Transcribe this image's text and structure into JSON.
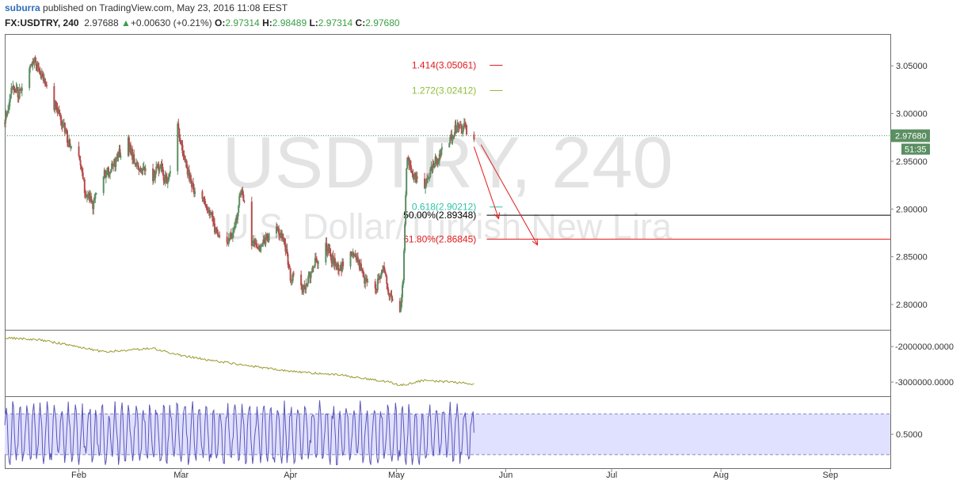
{
  "header": {
    "author": "suburra",
    "published_text": " published on TradingView.com, May 23, 2016 11:08 EEST",
    "symbol": "FX:USDTRY, 240",
    "last": "2.97688",
    "change": "+0.00630 (+0.21%)",
    "o_label": "O:",
    "o": "2.97314",
    "h_label": "H:",
    "h": "2.98489",
    "l_label": "L:",
    "l": "2.97314",
    "c_label": "C:",
    "c": "2.97680"
  },
  "watermark": {
    "line1": "USDTRY, 240",
    "line2": "U.S. Dollar/Turkish New Lira"
  },
  "colors": {
    "up": "#5b8f63",
    "down": "#b54d4d",
    "red": "#e31a1c",
    "fib_green": "#8fbd3a",
    "fib_teal": "#2ec4a6",
    "olive": "#9a9a2e",
    "purple": "#5a56b8",
    "band_fill": "#e0e0ff",
    "price_tag": "#5b8f63"
  },
  "chart_data": [
    {
      "type": "candlestick",
      "title": "USDTRY, 240",
      "x_tick_labels": [
        "Feb",
        "Mar",
        "Apr",
        "May",
        "Jun",
        "Jul",
        "Aug",
        "Sep"
      ],
      "y_tick_labels": [
        "3.05000",
        "3.00000",
        "2.95000",
        "2.90000",
        "2.85000",
        "2.80000"
      ],
      "ylim": [
        2.7735,
        3.0825
      ],
      "last_price_label": "2.97680",
      "countdown_label": "51:35",
      "close_path": [
        [
          "2016-01-11",
          2.99
        ],
        [
          "2016-01-13",
          3.03
        ],
        [
          "2016-01-15",
          3.02
        ],
        [
          "2016-01-18",
          3.045
        ],
        [
          "2016-01-20",
          3.055
        ],
        [
          "2016-01-22",
          3.035
        ],
        [
          "2016-01-25",
          3.01
        ],
        [
          "2016-01-27",
          2.995
        ],
        [
          "2016-01-29",
          2.97
        ],
        [
          "2016-02-01",
          2.95
        ],
        [
          "2016-02-03",
          2.915
        ],
        [
          "2016-02-05",
          2.905
        ],
        [
          "2016-02-08",
          2.935
        ],
        [
          "2016-02-10",
          2.94
        ],
        [
          "2016-02-12",
          2.955
        ],
        [
          "2016-02-15",
          2.97
        ],
        [
          "2016-02-17",
          2.945
        ],
        [
          "2016-02-19",
          2.94
        ],
        [
          "2016-02-22",
          2.935
        ],
        [
          "2016-02-24",
          2.945
        ],
        [
          "2016-02-26",
          2.925
        ],
        [
          "2016-02-29",
          2.99
        ],
        [
          "2016-03-02",
          2.95
        ],
        [
          "2016-03-04",
          2.925
        ],
        [
          "2016-03-07",
          2.91
        ],
        [
          "2016-03-09",
          2.9
        ],
        [
          "2016-03-11",
          2.875
        ],
        [
          "2016-03-14",
          2.865
        ],
        [
          "2016-03-16",
          2.875
        ],
        [
          "2016-03-18",
          2.92
        ],
        [
          "2016-03-21",
          2.865
        ],
        [
          "2016-03-23",
          2.855
        ],
        [
          "2016-03-25",
          2.87
        ],
        [
          "2016-03-28",
          2.88
        ],
        [
          "2016-03-30",
          2.87
        ],
        [
          "2016-04-01",
          2.83
        ],
        [
          "2016-04-04",
          2.815
        ],
        [
          "2016-04-06",
          2.825
        ],
        [
          "2016-04-08",
          2.845
        ],
        [
          "2016-04-11",
          2.86
        ],
        [
          "2016-04-13",
          2.845
        ],
        [
          "2016-04-15",
          2.835
        ],
        [
          "2016-04-18",
          2.855
        ],
        [
          "2016-04-20",
          2.845
        ],
        [
          "2016-04-22",
          2.825
        ],
        [
          "2016-04-25",
          2.815
        ],
        [
          "2016-04-27",
          2.84
        ],
        [
          "2016-04-29",
          2.81
        ],
        [
          "2016-05-02",
          2.795
        ],
        [
          "2016-05-03",
          2.83
        ],
        [
          "2016-05-04",
          2.955
        ],
        [
          "2016-05-06",
          2.935
        ],
        [
          "2016-05-09",
          2.925
        ],
        [
          "2016-05-11",
          2.945
        ],
        [
          "2016-05-13",
          2.955
        ],
        [
          "2016-05-16",
          2.97
        ],
        [
          "2016-05-18",
          2.985
        ],
        [
          "2016-05-20",
          2.985
        ],
        [
          "2016-05-23",
          2.9768
        ]
      ],
      "horizontal_lines": [
        {
          "label": "1.414(3.05061)",
          "value": 3.05061,
          "color": "#e31a1c",
          "extend": false
        },
        {
          "label": "1.272(3.02412)",
          "value": 3.02412,
          "color": "#8fbd3a",
          "extend": false
        },
        {
          "label": "0.618(2.90212)",
          "value": 2.90212,
          "color": "#2ec4a6",
          "extend": false
        },
        {
          "label": "50.00%(2.89348)",
          "value": 2.89348,
          "color": "#000000",
          "extend": true
        },
        {
          "label": "61.80%(2.86845)",
          "value": 2.86845,
          "color": "#e31a1c",
          "extend": true
        }
      ],
      "arrows": [
        {
          "from": [
            "2016-05-23",
            2.9768
          ],
          "to": [
            "2016-05-30",
            2.8965
          ]
        },
        {
          "from": [
            "2016-05-25",
            2.979
          ],
          "to": [
            "2016-06-10",
            2.869
          ]
        }
      ]
    },
    {
      "type": "line",
      "y_tick_labels": [
        "-2000000.0000",
        "-3000000.0000"
      ],
      "ylim": [
        -3400000,
        -1550000
      ],
      "points": [
        [
          "2016-01-11",
          -1750000
        ],
        [
          "2016-01-20",
          -1800000
        ],
        [
          "2016-01-29",
          -1950000
        ],
        [
          "2016-02-08",
          -2150000
        ],
        [
          "2016-02-15",
          -2100000
        ],
        [
          "2016-02-22",
          -2050000
        ],
        [
          "2016-03-01",
          -2250000
        ],
        [
          "2016-03-10",
          -2400000
        ],
        [
          "2016-03-21",
          -2550000
        ],
        [
          "2016-04-01",
          -2700000
        ],
        [
          "2016-04-15",
          -2800000
        ],
        [
          "2016-04-29",
          -3000000
        ],
        [
          "2016-05-02",
          -3100000
        ],
        [
          "2016-05-09",
          -2950000
        ],
        [
          "2016-05-16",
          -3000000
        ],
        [
          "2016-05-23",
          -3050000
        ]
      ]
    },
    {
      "type": "line",
      "y_tick_labels": [
        "0.5000"
      ],
      "ylim": [
        0.0,
        1.05
      ],
      "band": [
        0.2,
        0.8
      ],
      "points_note": "oscillator values between 0.05 and 1.0"
    }
  ]
}
